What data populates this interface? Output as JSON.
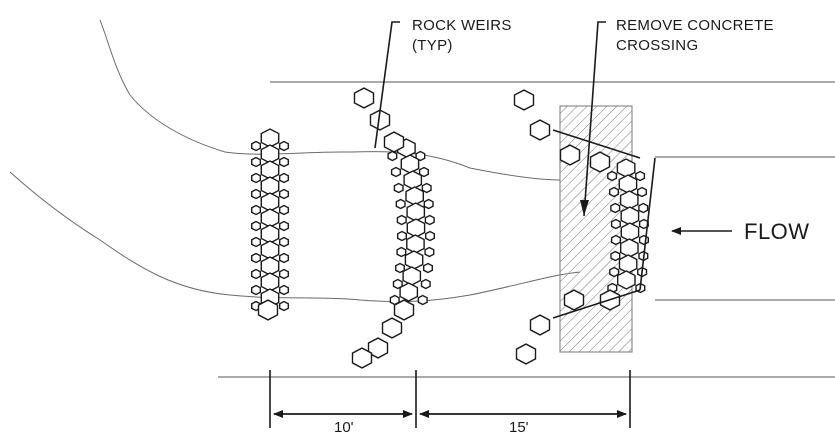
{
  "labels": {
    "rock_weirs_line1": "ROCK WEIRS",
    "rock_weirs_line2": "(TYP)",
    "remove_concrete_line1": "REMOVE CONCRETE",
    "remove_concrete_line2": "CROSSING",
    "flow": "FLOW"
  },
  "dimensions": {
    "weir_spacing_1": "10'",
    "weir_spacing_2": "15'"
  },
  "rock_weirs": [
    {
      "name": "weir-upstream-straight",
      "shape": "straight"
    },
    {
      "name": "weir-middle-curved",
      "shape": "curved-with-wings"
    },
    {
      "name": "weir-downstream-curved",
      "shape": "curved-with-wings"
    }
  ],
  "concrete_crossing": {
    "hatch": "diagonal",
    "status": "remove"
  },
  "colors": {
    "ink": "#1a1a1a",
    "hatch": "#777777",
    "background": "#ffffff"
  }
}
